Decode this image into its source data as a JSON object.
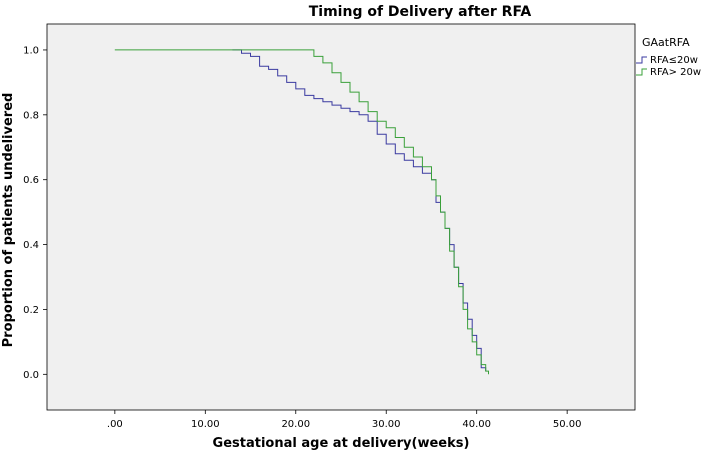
{
  "chart_data": {
    "type": "line",
    "title": "Timing of Delivery after RFA",
    "xlabel": "Gestational age at delivery(weeks)",
    "ylabel": "Proportion of patients undelivered",
    "xlim": [
      -7.5,
      57.5
    ],
    "ylim": [
      -0.11,
      1.08
    ],
    "x_ticks": [
      0,
      10,
      20,
      30,
      40,
      50
    ],
    "x_tick_labels": [
      ".00",
      "10.00",
      "20.00",
      "30.00",
      "40.00",
      "50.00"
    ],
    "y_ticks": [
      0.0,
      0.2,
      0.4,
      0.6,
      0.8,
      1.0
    ],
    "y_tick_labels": [
      "0.0",
      "0.2",
      "0.4",
      "0.6",
      "0.8",
      "1.0"
    ],
    "grid": false,
    "legend": {
      "title": "GAatRFA",
      "position": "top-right"
    },
    "series": [
      {
        "name": "RFA≤20w",
        "color": "#3a3aa0",
        "x": [
          13,
          14,
          15,
          16,
          17,
          18,
          19,
          20,
          21,
          22,
          23,
          24,
          25,
          26,
          27,
          28,
          29,
          30,
          31,
          32,
          33,
          34,
          35,
          35.5,
          36,
          36.5,
          37,
          37.5,
          38,
          38.5,
          39,
          39.5,
          40,
          40.5,
          41
        ],
        "y": [
          1.0,
          0.99,
          0.98,
          0.95,
          0.94,
          0.92,
          0.9,
          0.88,
          0.86,
          0.85,
          0.84,
          0.83,
          0.82,
          0.81,
          0.8,
          0.78,
          0.74,
          0.71,
          0.68,
          0.66,
          0.64,
          0.62,
          0.6,
          0.53,
          0.5,
          0.45,
          0.4,
          0.33,
          0.28,
          0.22,
          0.17,
          0.12,
          0.08,
          0.02,
          0.01
        ]
      },
      {
        "name": "RFA> 20w",
        "color": "#3aa03a",
        "x": [
          0,
          21,
          22,
          23,
          24,
          25,
          26,
          27,
          28,
          29,
          30,
          31,
          32,
          33,
          34,
          35,
          35.5,
          36,
          36.5,
          37,
          37.5,
          38,
          38.5,
          39,
          39.5,
          40,
          40.5,
          41,
          41.3
        ],
        "y": [
          1.0,
          1.0,
          0.98,
          0.96,
          0.93,
          0.9,
          0.87,
          0.84,
          0.81,
          0.78,
          0.76,
          0.73,
          0.7,
          0.67,
          0.64,
          0.6,
          0.55,
          0.5,
          0.45,
          0.38,
          0.33,
          0.27,
          0.2,
          0.14,
          0.1,
          0.06,
          0.03,
          0.01,
          0.0
        ]
      }
    ]
  }
}
